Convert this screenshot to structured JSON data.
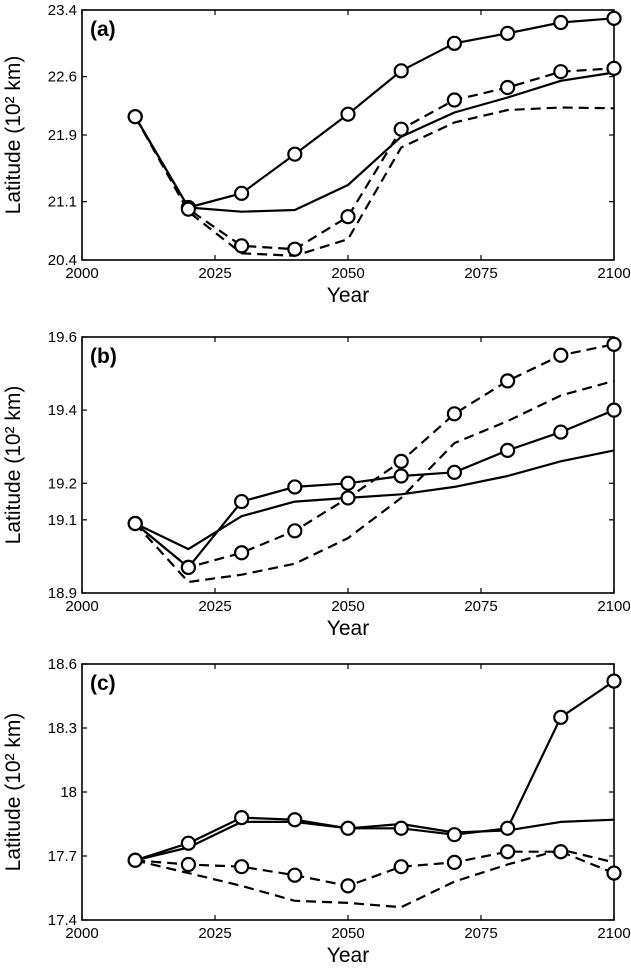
{
  "chart_data": [
    {
      "type": "line",
      "title": "(a)",
      "xlabel": "Year",
      "ylabel": "Latitude (10² km)",
      "xlim": [
        2000,
        2100
      ],
      "ylim": [
        20.4,
        23.4
      ],
      "x_ticks": [
        2000,
        2025,
        2050,
        2075,
        2100
      ],
      "y_ticks": [
        20.4,
        21.1,
        21.9,
        22.6,
        23.4
      ],
      "x_tick_labels": [
        "2000",
        "2025",
        "2050",
        "2075",
        "2100"
      ],
      "y_tick_labels": [
        "20.4",
        "21.1",
        "21.9",
        "22.6",
        "23.4"
      ],
      "series": [
        {
          "style": "solid",
          "markers": true,
          "x": [
            2010,
            2020,
            2030,
            2040,
            2050,
            2060,
            2070,
            2080,
            2090,
            2100
          ],
          "y": [
            22.12,
            21.03,
            21.2,
            21.67,
            22.15,
            22.67,
            23.0,
            23.12,
            23.25,
            23.3
          ]
        },
        {
          "style": "solid",
          "markers": false,
          "x": [
            2010,
            2020,
            2030,
            2040,
            2050,
            2060,
            2070,
            2080,
            2090,
            2100
          ],
          "y": [
            22.12,
            21.03,
            20.98,
            21.0,
            21.3,
            21.88,
            22.17,
            22.35,
            22.55,
            22.65
          ]
        },
        {
          "style": "dashed",
          "markers": true,
          "x": [
            2010,
            2020,
            2030,
            2040,
            2050,
            2060,
            2070,
            2080,
            2090,
            2100
          ],
          "y": [
            22.12,
            21.01,
            20.57,
            20.53,
            20.92,
            21.97,
            22.32,
            22.47,
            22.66,
            22.7
          ]
        },
        {
          "style": "dashed",
          "markers": false,
          "x": [
            2010,
            2020,
            2030,
            2040,
            2050,
            2060,
            2070,
            2080,
            2090,
            2100
          ],
          "y": [
            22.12,
            20.98,
            20.48,
            20.45,
            20.65,
            21.75,
            22.05,
            22.2,
            22.23,
            22.22
          ]
        }
      ]
    },
    {
      "type": "line",
      "title": "(b)",
      "xlabel": "Year",
      "ylabel": "Latitude (10² km)",
      "xlim": [
        2000,
        2100
      ],
      "ylim": [
        18.9,
        19.6
      ],
      "x_ticks": [
        2000,
        2025,
        2050,
        2075,
        2100
      ],
      "y_ticks": [
        18.9,
        19.1,
        19.2,
        19.4,
        19.6
      ],
      "x_tick_labels": [
        "2000",
        "2025",
        "2050",
        "2075",
        "2100"
      ],
      "y_tick_labels": [
        "18.9",
        "19.1",
        "19.2",
        "19.4",
        "19.6"
      ],
      "series": [
        {
          "style": "solid",
          "markers": true,
          "x": [
            2010,
            2020,
            2030,
            2040,
            2050,
            2060,
            2070,
            2080,
            2090,
            2100
          ],
          "y": [
            19.09,
            18.97,
            19.15,
            19.19,
            19.2,
            19.22,
            19.23,
            19.29,
            19.34,
            19.4
          ]
        },
        {
          "style": "solid",
          "markers": false,
          "x": [
            2010,
            2020,
            2030,
            2040,
            2050,
            2060,
            2070,
            2080,
            2090,
            2100
          ],
          "y": [
            19.09,
            19.02,
            19.11,
            19.15,
            19.16,
            19.17,
            19.19,
            19.22,
            19.26,
            19.29
          ]
        },
        {
          "style": "dashed",
          "markers": true,
          "x": [
            2010,
            2020,
            2030,
            2040,
            2050,
            2060,
            2070,
            2080,
            2090,
            2100
          ],
          "y": [
            19.09,
            18.97,
            19.01,
            19.07,
            19.16,
            19.26,
            19.39,
            19.48,
            19.55,
            19.58
          ]
        },
        {
          "style": "dashed",
          "markers": false,
          "x": [
            2010,
            2020,
            2030,
            2040,
            2050,
            2060,
            2070,
            2080,
            2090,
            2100
          ],
          "y": [
            19.09,
            18.93,
            18.95,
            18.98,
            19.05,
            19.16,
            19.31,
            19.37,
            19.44,
            19.48
          ]
        }
      ]
    },
    {
      "type": "line",
      "title": "(c)",
      "xlabel": "Year",
      "ylabel": "Latitude (10² km)",
      "xlim": [
        2000,
        2100
      ],
      "ylim": [
        17.4,
        18.6
      ],
      "x_ticks": [
        2000,
        2025,
        2050,
        2075,
        2100
      ],
      "y_ticks": [
        17.4,
        17.7,
        18.0,
        18.3,
        18.6
      ],
      "x_tick_labels": [
        "2000",
        "2025",
        "2050",
        "2075",
        "2100"
      ],
      "y_tick_labels": [
        "17.4",
        "17.7",
        "18",
        "18.3",
        "18.6"
      ],
      "series": [
        {
          "style": "solid",
          "markers": true,
          "x": [
            2010,
            2020,
            2030,
            2040,
            2050,
            2060,
            2070,
            2080,
            2090,
            2100
          ],
          "y": [
            17.68,
            17.76,
            17.88,
            17.87,
            17.83,
            17.83,
            17.8,
            17.83,
            18.35,
            18.52
          ]
        },
        {
          "style": "solid",
          "markers": false,
          "x": [
            2010,
            2020,
            2030,
            2040,
            2050,
            2060,
            2070,
            2080,
            2090,
            2100
          ],
          "y": [
            17.68,
            17.74,
            17.86,
            17.86,
            17.83,
            17.85,
            17.81,
            17.82,
            17.86,
            17.87
          ]
        },
        {
          "style": "dashed",
          "markers": true,
          "x": [
            2010,
            2020,
            2030,
            2040,
            2050,
            2060,
            2070,
            2080,
            2090,
            2100
          ],
          "y": [
            17.68,
            17.66,
            17.65,
            17.61,
            17.56,
            17.65,
            17.67,
            17.72,
            17.72,
            17.62
          ]
        },
        {
          "style": "dashed",
          "markers": false,
          "x": [
            2010,
            2020,
            2030,
            2040,
            2050,
            2060,
            2070,
            2080,
            2090,
            2100
          ],
          "y": [
            17.68,
            17.62,
            17.56,
            17.49,
            17.48,
            17.46,
            17.58,
            17.66,
            17.73,
            17.67
          ]
        }
      ]
    }
  ]
}
